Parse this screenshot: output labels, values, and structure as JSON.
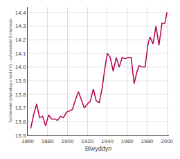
{
  "chart_data": {
    "type": "line",
    "x_label": "Blwyddyn",
    "y_label": "Tymheredd cyfartalog y byd (°C) - cyfartaledd 5 mlynedd",
    "x": [
      1863,
      1866,
      1869,
      1872,
      1875,
      1878,
      1881,
      1884,
      1887,
      1890,
      1893,
      1896,
      1899,
      1902,
      1905,
      1908,
      1911,
      1914,
      1917,
      1920,
      1923,
      1926,
      1929,
      1932,
      1935,
      1937,
      1940,
      1943,
      1946,
      1949,
      1952,
      1955,
      1958,
      1961,
      1964,
      1967,
      1970,
      1972,
      1975,
      1978,
      1981,
      1983,
      1986,
      1989,
      1992,
      1995,
      1998,
      2000
    ],
    "values": [
      13.55,
      13.65,
      13.73,
      13.63,
      13.64,
      13.57,
      13.65,
      13.62,
      13.62,
      13.61,
      13.64,
      13.63,
      13.67,
      13.68,
      13.69,
      13.76,
      13.82,
      13.76,
      13.7,
      13.73,
      13.75,
      13.84,
      13.75,
      13.74,
      13.85,
      13.96,
      14.1,
      14.07,
      13.97,
      14.07,
      14.0,
      14.07,
      14.06,
      14.07,
      14.07,
      13.88,
      13.97,
      14.01,
      14.0,
      14.0,
      14.17,
      14.22,
      14.17,
      14.3,
      14.16,
      14.32,
      14.32,
      14.4
    ],
    "color": "#b5004e",
    "xlim": [
      1860,
      2002
    ],
    "xticks": [
      1860,
      1880,
      1900,
      1920,
      1940,
      1960,
      1980,
      2000
    ],
    "ylim": [
      13.5,
      14.44
    ],
    "yticks": [
      13.5,
      13.6,
      13.7,
      13.8,
      13.9,
      {
        "value": 14.0,
        "label": "14.0"
      },
      14.1,
      14.2,
      14.3,
      14.4
    ],
    "grid": true
  }
}
